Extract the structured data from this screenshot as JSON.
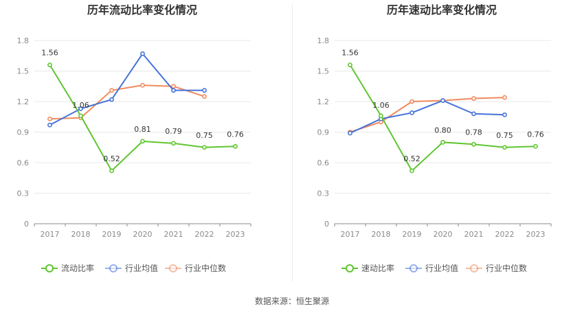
{
  "source": "数据来源：恒生聚源",
  "colors": {
    "company": "#5ec52e",
    "industry_avg": "#4472db",
    "industry_median": "#f08a5d",
    "grid": "#e8e8e8",
    "axis": "#888888"
  },
  "chart_data": [
    {
      "type": "line",
      "title": "历年流动比率变化情况",
      "categories": [
        "2017",
        "2018",
        "2019",
        "2020",
        "2021",
        "2022",
        "2023"
      ],
      "yticks": [
        "0",
        "0.3",
        "0.6",
        "0.9",
        "1.2",
        "1.5",
        "1.8"
      ],
      "ylim": [
        0,
        1.8
      ],
      "legend_position": "bottom",
      "series": [
        {
          "name": "流动比率",
          "key": "company",
          "values": [
            1.56,
            1.06,
            0.52,
            0.81,
            0.79,
            0.75,
            0.76
          ],
          "labels": [
            "1.56",
            "1.06",
            "0.52",
            "0.81",
            "0.79",
            "0.75",
            "0.76"
          ]
        },
        {
          "name": "行业均值",
          "key": "industry_avg",
          "values": [
            0.97,
            1.13,
            1.22,
            1.67,
            1.31,
            1.31,
            null
          ]
        },
        {
          "name": "行业中位数",
          "key": "industry_median",
          "values": [
            1.03,
            1.04,
            1.31,
            1.36,
            1.35,
            1.25,
            null
          ]
        }
      ]
    },
    {
      "type": "line",
      "title": "历年速动比率变化情况",
      "categories": [
        "2017",
        "2018",
        "2019",
        "2020",
        "2021",
        "2022",
        "2023"
      ],
      "yticks": [
        "0",
        "0.3",
        "0.6",
        "0.9",
        "1.2",
        "1.5",
        "1.8"
      ],
      "ylim": [
        0,
        1.8
      ],
      "legend_position": "bottom",
      "series": [
        {
          "name": "速动比率",
          "key": "company",
          "values": [
            1.56,
            1.06,
            0.52,
            0.8,
            0.78,
            0.75,
            0.76
          ],
          "labels": [
            "1.56",
            "1.06",
            "0.52",
            "0.80",
            "0.78",
            "0.75",
            "0.76"
          ]
        },
        {
          "name": "行业均值",
          "key": "industry_avg",
          "values": [
            0.89,
            1.03,
            1.09,
            1.21,
            1.08,
            1.07,
            null
          ]
        },
        {
          "name": "行业中位数",
          "key": "industry_median",
          "values": [
            0.9,
            1.0,
            1.2,
            1.21,
            1.23,
            1.24,
            null
          ]
        }
      ]
    }
  ]
}
